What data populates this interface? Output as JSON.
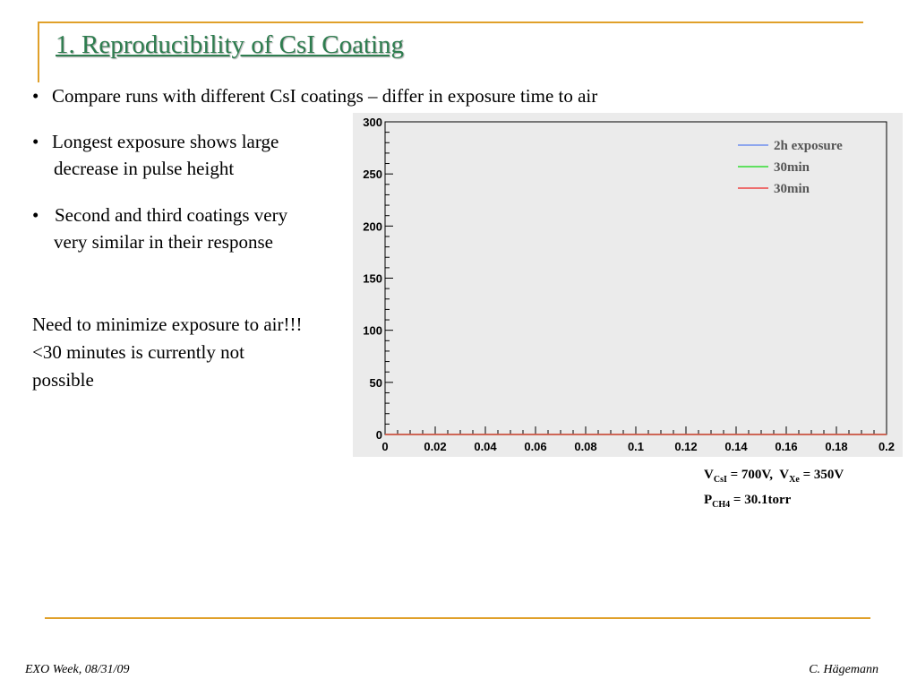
{
  "theme": {
    "accent": "#e0a02a",
    "title_color": "#2e7d4f",
    "plot_bg": "#ebebeb",
    "frame_bg": "#ebebeb"
  },
  "slide": {
    "title": "1. Reproducibility of CsI Coating",
    "bullets": [
      {
        "symbol": "•",
        "lines": [
          "Compare runs with different CsI coatings – differ in exposure time to air"
        ]
      },
      {
        "symbol": "•",
        "lines": [
          "Longest exposure shows large",
          "decrease in pulse height"
        ]
      },
      {
        "symbol": "•",
        "lines": [
          "Second and third coatings very",
          "very similar in their response"
        ]
      }
    ],
    "note": [
      "Need to minimize exposure to air!!!",
      "<30 minutes is currently not",
      "possible"
    ],
    "params": {
      "v_csi_v": "V",
      "v_csi_sub": "CsI",
      "v_csi_val": " = 700V,  ",
      "v_xe_v": "V",
      "v_xe_sub": "Xe",
      "v_xe_val": " = 350V",
      "p_p": "P",
      "p_sub": "CH4",
      "p_val": " = 30.1torr"
    },
    "footer": {
      "left": "EXO Week, 08/31/09",
      "right": "C. Hägemann"
    }
  },
  "chart_data": {
    "type": "line",
    "style": "step-histogram",
    "title": "",
    "xlabel": "",
    "ylabel": "",
    "xlim": [
      0,
      0.2
    ],
    "ylim": [
      0,
      300
    ],
    "bin_width": 0.005,
    "x_ticks": [
      "0",
      "0.02",
      "0.04",
      "0.06",
      "0.08",
      "0.1",
      "0.12",
      "0.14",
      "0.16",
      "0.18",
      "0.2"
    ],
    "y_ticks": [
      "0",
      "50",
      "100",
      "150",
      "200",
      "250",
      "300"
    ],
    "grid": false,
    "legend_position": "top-right",
    "series": [
      {
        "name": "2h exposure",
        "color": "#6f8ff0",
        "values": [
          0,
          0,
          0,
          0,
          0,
          0,
          0,
          0,
          0,
          0,
          0,
          0,
          0,
          0,
          0,
          0,
          0,
          0,
          0,
          0,
          0,
          0,
          0,
          0,
          0,
          0,
          0,
          0,
          0,
          0,
          0,
          0,
          0,
          0,
          0,
          0,
          0,
          0,
          0,
          0
        ]
      },
      {
        "name": "30min",
        "color": "#33dd33",
        "values": [
          0,
          0,
          0,
          0,
          0,
          0,
          0,
          0,
          0,
          0,
          0,
          0,
          0,
          0,
          0,
          0,
          0,
          0,
          0,
          0,
          0,
          0,
          0,
          0,
          0,
          0,
          0,
          0,
          0,
          0,
          0,
          0,
          0,
          0,
          0,
          0,
          0,
          0,
          0,
          0
        ]
      },
      {
        "name": "30min",
        "color": "#ee4444",
        "values": [
          0,
          0,
          0,
          0,
          0,
          0,
          0,
          0,
          0,
          0,
          0,
          0,
          0,
          0,
          0,
          0,
          0,
          0,
          0,
          0,
          0,
          0,
          0,
          0,
          0,
          0,
          0,
          0,
          0,
          0,
          0,
          0,
          0,
          0,
          0,
          0,
          0,
          0,
          0,
          0
        ]
      }
    ]
  }
}
